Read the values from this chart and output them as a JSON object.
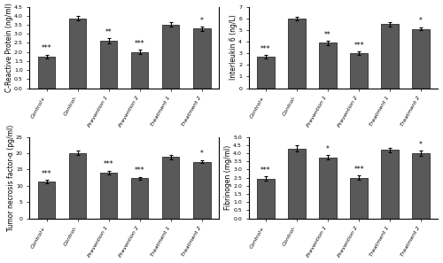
{
  "subplots": [
    {
      "ylabel": "C-Reactive Protein (ng/ml)",
      "ylim": [
        0,
        4.5
      ],
      "yticks": [
        0,
        0.5,
        1.0,
        1.5,
        2.0,
        2.5,
        3.0,
        3.5,
        4.0,
        4.5
      ],
      "categories": [
        "Control+",
        "Control-",
        "Prevention 1",
        "Prevention 2",
        "Treatment 1",
        "Treatment 2"
      ],
      "values": [
        1.75,
        3.85,
        2.6,
        2.0,
        3.52,
        3.28
      ],
      "errors": [
        0.1,
        0.12,
        0.15,
        0.12,
        0.13,
        0.1
      ],
      "significance": [
        "***",
        "",
        "**",
        "***",
        "",
        "*"
      ]
    },
    {
      "ylabel": "Interleukin 6 (ng/L)",
      "ylim": [
        0,
        7
      ],
      "yticks": [
        0,
        1,
        2,
        3,
        4,
        5,
        6,
        7
      ],
      "categories": [
        "Control+",
        "Control-",
        "Prevention 1",
        "Prevention 2",
        "Treatment 1",
        "Treatment 2"
      ],
      "values": [
        2.7,
        6.0,
        3.9,
        3.0,
        5.5,
        5.1
      ],
      "errors": [
        0.15,
        0.15,
        0.18,
        0.15,
        0.2,
        0.15
      ],
      "significance": [
        "***",
        "",
        "**",
        "***",
        "",
        "*"
      ]
    },
    {
      "ylabel": "Tumor necrosis factor-α (pg/ml)",
      "ylim": [
        0,
        25
      ],
      "yticks": [
        0,
        5,
        10,
        15,
        20,
        25
      ],
      "categories": [
        "Control+",
        "Control-",
        "Prevention 1",
        "Prevention 2",
        "Treatment 1",
        "Treatment 2"
      ],
      "values": [
        11.3,
        20.1,
        14.1,
        12.3,
        18.8,
        17.4
      ],
      "errors": [
        0.5,
        0.6,
        0.6,
        0.5,
        0.6,
        0.5
      ],
      "significance": [
        "***",
        "",
        "***",
        "***",
        "",
        "*"
      ]
    },
    {
      "ylabel": "Fibrinogen (mg/ml)",
      "ylim": [
        0,
        5
      ],
      "yticks": [
        0,
        0.5,
        1.0,
        1.5,
        2.0,
        2.5,
        3.0,
        3.5,
        4.0,
        4.5,
        5.0
      ],
      "categories": [
        "Control+",
        "Control-",
        "Prevention 1",
        "Prevention 2",
        "Treatment 1",
        "Treatment 2"
      ],
      "values": [
        2.45,
        4.3,
        3.75,
        2.5,
        4.2,
        4.0
      ],
      "errors": [
        0.15,
        0.18,
        0.15,
        0.15,
        0.15,
        0.15
      ],
      "significance": [
        "***",
        "",
        "*",
        "***",
        "",
        "*"
      ]
    }
  ],
  "bar_color": "#595959",
  "bar_edge_color": "#111111",
  "bar_width": 0.55,
  "fig_bgcolor": "#ffffff",
  "axes_bgcolor": "#ffffff",
  "sig_fontsize": 5.5,
  "tick_fontsize": 4.5,
  "ylabel_fontsize": 5.5,
  "label_rotation": 60
}
